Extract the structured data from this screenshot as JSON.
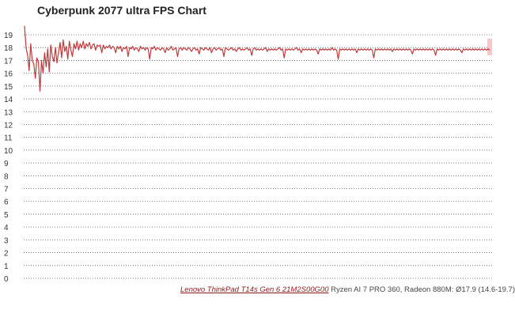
{
  "chart_data": {
    "type": "line",
    "title": "Cyberpunk 2077 ultra FPS Chart",
    "xlabel": "",
    "ylabel": "",
    "ylim": [
      0,
      20
    ],
    "yticks": [
      0,
      1,
      2,
      3,
      4,
      5,
      6,
      7,
      8,
      9,
      10,
      11,
      12,
      13,
      14,
      15,
      16,
      17,
      18,
      19
    ],
    "grid": true,
    "grid_style": "dotted",
    "legend": "none",
    "series": [
      {
        "color": "#c0383b",
        "values": [
          19.7,
          18.0,
          17.4,
          16.2,
          18.3,
          17.0,
          16.7,
          15.6,
          17.2,
          16.9,
          14.6,
          17.0,
          16.0,
          17.6,
          16.5,
          17.9,
          16.1,
          18.2,
          17.3,
          16.9,
          18.0,
          16.8,
          17.6,
          18.4,
          17.2,
          18.6,
          17.7,
          18.1,
          17.1,
          18.5,
          17.8,
          17.3,
          18.3,
          17.9,
          18.5,
          17.8,
          18.3,
          18.0,
          18.5,
          17.9,
          18.3,
          18.1,
          18.4,
          17.9,
          18.2,
          18.3,
          17.8,
          18.2,
          18.1,
          18.2,
          17.6,
          18.2,
          17.9,
          18.1,
          18.0,
          18.2,
          17.9,
          18.1,
          18.0,
          17.6,
          18.1,
          17.9,
          18.1,
          17.7,
          18.0,
          17.9,
          18.1,
          17.3,
          18.0,
          17.9,
          18.1,
          17.8,
          18.0,
          17.9,
          17.7,
          18.1,
          17.9,
          18.0,
          17.8,
          18.0,
          17.9,
          17.1,
          18.0,
          17.9,
          18.1,
          17.8,
          18.0,
          17.9,
          17.8,
          18.0,
          17.9,
          17.6,
          18.0,
          17.8,
          17.9,
          18.1,
          17.8,
          17.9,
          18.0,
          17.3,
          17.9,
          18.0,
          17.8,
          18.0,
          17.9,
          17.8,
          18.0,
          17.9,
          17.7,
          17.9,
          18.0,
          17.8,
          17.9,
          17.5,
          18.0,
          17.9,
          17.8,
          18.0,
          17.9,
          17.8,
          18.0,
          17.6,
          17.9,
          18.0,
          17.8,
          17.9,
          18.0,
          17.8,
          17.9,
          17.3,
          18.0,
          17.9,
          17.8,
          17.9,
          18.0,
          17.8,
          17.9,
          17.7,
          17.9,
          18.0,
          17.8,
          17.9,
          17.8,
          17.9,
          18.0,
          17.8,
          17.9,
          17.4,
          17.9,
          18.0,
          17.8,
          17.9,
          17.8,
          17.9,
          17.8,
          17.9,
          18.0,
          17.7,
          17.9,
          17.8,
          17.9,
          17.8,
          17.9,
          17.8,
          17.9,
          18.0,
          17.8,
          17.9,
          17.2,
          17.9,
          17.8,
          17.9,
          17.8,
          17.9,
          17.8,
          17.9,
          18.0,
          17.8,
          17.9,
          17.6,
          17.9,
          17.8,
          17.9,
          17.8,
          17.9,
          17.8,
          17.9,
          17.8,
          17.9,
          17.8,
          17.5,
          17.9,
          17.8,
          17.9,
          17.8,
          17.9,
          17.8,
          17.9,
          17.8,
          18.0,
          17.8,
          17.9,
          17.8,
          17.1,
          17.9,
          17.8,
          17.9,
          17.8,
          17.9,
          17.8,
          17.9,
          17.8,
          17.9,
          17.8,
          17.9,
          17.6,
          17.9,
          17.8,
          17.9,
          17.8,
          17.9,
          17.8,
          17.9,
          17.8,
          17.9,
          17.8,
          17.2,
          17.9,
          17.8,
          17.9,
          17.8,
          17.9,
          17.8,
          17.9,
          17.8,
          17.9,
          17.8,
          17.9,
          17.7,
          17.9,
          17.8,
          17.9,
          17.8,
          17.9,
          17.8,
          17.9,
          17.8,
          17.9,
          17.8,
          17.9,
          17.8,
          17.5,
          17.9,
          17.8,
          17.9,
          17.8,
          17.9,
          17.8,
          17.9,
          17.8,
          17.9,
          17.8,
          17.9,
          17.8,
          17.9,
          17.8,
          17.4,
          17.9,
          17.8,
          17.9,
          17.8,
          17.9,
          17.8,
          17.9,
          17.8,
          17.9,
          17.8,
          17.9,
          17.8,
          17.9,
          17.8,
          17.9,
          17.8,
          17.6,
          17.9,
          17.8,
          17.9,
          17.8,
          17.9,
          17.8,
          17.9,
          17.8,
          17.9,
          17.8,
          17.9,
          17.8,
          17.9,
          17.8,
          17.9,
          17.8,
          17.9,
          17.8
        ]
      }
    ],
    "highlight_color": "#f3c8c8"
  },
  "caption": {
    "device_link": "Lenovo ThinkPad T14s Gen 6 21M2S00G00",
    "specs": " Ryzen AI 7 PRO 360, Radeon 880M: Ø17.9 (14.6-19.7)"
  }
}
